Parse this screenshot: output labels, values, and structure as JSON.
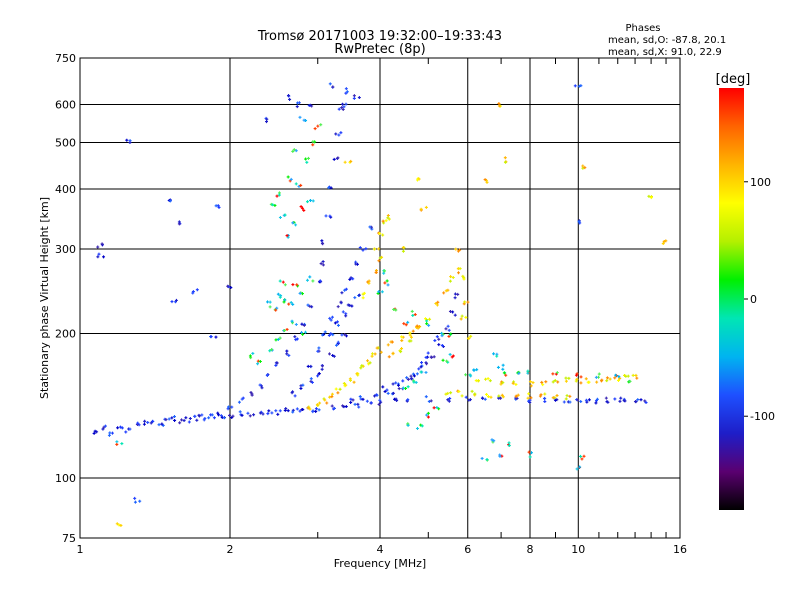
{
  "chart_data": {
    "type": "scatter",
    "title": "Tromsø 20171003 19:32:00–19:33:43",
    "subtitle": "RwPretec (8p)",
    "xlabel": "Frequency [MHz]",
    "ylabel": "Stationary phase Virtual Height [km]",
    "x_scale": "log",
    "y_scale": "log",
    "xlim": [
      1,
      16
    ],
    "ylim": [
      75,
      750
    ],
    "x_ticks": [
      1,
      2,
      4,
      6,
      8,
      10,
      16
    ],
    "x_minor_ticks": [
      3,
      5,
      7,
      9,
      11,
      12,
      13,
      14,
      15
    ],
    "y_ticks": [
      75,
      100,
      200,
      300,
      400,
      500,
      600,
      750
    ],
    "grid": true,
    "phases_box": {
      "title": "Phases",
      "line1": "mean, sd,O: -87.8, 20.1",
      "line2": "mean, sd,X:  91.0, 22.9"
    },
    "colorbar": {
      "label": "[deg]",
      "range": [
        -180,
        180
      ],
      "ticks": [
        100,
        0,
        -100
      ],
      "colormap": [
        "#000000",
        "#5a0070",
        "#1e1ec8",
        "#1e50ff",
        "#00b4f0",
        "#00e6b4",
        "#00f000",
        "#b4f000",
        "#ffff00",
        "#ffb400",
        "#ff6400",
        "#ff0000"
      ]
    },
    "series": [
      {
        "color_group": "O-mode (blue, ~-90 deg)",
        "points": [
          [
            1.08,
            125
          ],
          [
            1.12,
            127
          ],
          [
            1.16,
            124
          ],
          [
            1.2,
            127
          ],
          [
            1.25,
            126
          ],
          [
            1.3,
            129
          ],
          [
            1.35,
            130
          ],
          [
            1.4,
            131
          ],
          [
            1.45,
            130
          ],
          [
            1.5,
            132
          ],
          [
            1.55,
            133
          ],
          [
            1.6,
            131
          ],
          [
            1.65,
            132
          ],
          [
            1.7,
            133
          ],
          [
            1.75,
            134
          ],
          [
            1.8,
            133
          ],
          [
            1.85,
            134
          ],
          [
            1.9,
            135
          ],
          [
            1.95,
            135
          ],
          [
            2.0,
            135
          ],
          [
            2.1,
            136
          ],
          [
            2.2,
            136
          ],
          [
            2.3,
            136
          ],
          [
            2.4,
            137
          ],
          [
            2.5,
            137
          ],
          [
            2.6,
            138
          ],
          [
            2.7,
            138
          ],
          [
            2.8,
            138
          ],
          [
            2.9,
            139
          ],
          [
            3.0,
            139
          ],
          [
            3.2,
            140
          ],
          [
            3.4,
            141
          ],
          [
            3.6,
            142
          ],
          [
            3.8,
            143
          ],
          [
            4.0,
            144
          ],
          [
            4.3,
            145
          ],
          [
            4.6,
            145
          ],
          [
            5.0,
            146
          ],
          [
            5.5,
            146
          ],
          [
            6.0,
            146
          ],
          [
            6.5,
            146
          ],
          [
            7.0,
            146
          ],
          [
            7.5,
            146
          ],
          [
            8.0,
            145
          ],
          [
            8.5,
            145
          ],
          [
            9.0,
            145
          ],
          [
            9.5,
            145
          ],
          [
            10.0,
            145
          ],
          [
            10.5,
            145
          ],
          [
            11.0,
            145
          ],
          [
            11.5,
            145
          ],
          [
            12.0,
            145
          ],
          [
            12.5,
            145
          ],
          [
            13.0,
            145
          ],
          [
            13.5,
            145
          ],
          [
            2.0,
            140
          ],
          [
            2.1,
            145
          ],
          [
            2.2,
            150
          ],
          [
            2.3,
            156
          ],
          [
            2.4,
            163
          ],
          [
            2.5,
            172
          ],
          [
            2.6,
            182
          ],
          [
            2.7,
            195
          ],
          [
            2.8,
            210
          ],
          [
            2.9,
            230
          ],
          [
            3.0,
            255
          ],
          [
            3.05,
            280
          ],
          [
            3.1,
            310
          ],
          [
            3.15,
            350
          ],
          [
            3.2,
            400
          ],
          [
            3.25,
            460
          ],
          [
            3.3,
            520
          ],
          [
            3.35,
            590
          ],
          [
            3.4,
            640
          ],
          [
            2.9,
            170
          ],
          [
            3.0,
            185
          ],
          [
            3.1,
            200
          ],
          [
            3.2,
            215
          ],
          [
            3.3,
            230
          ],
          [
            3.4,
            245
          ],
          [
            3.5,
            260
          ],
          [
            3.6,
            280
          ],
          [
            3.7,
            300
          ],
          [
            3.8,
            330
          ],
          [
            3.2,
            200
          ],
          [
            3.3,
            210
          ],
          [
            3.4,
            220
          ],
          [
            3.5,
            230
          ],
          [
            3.6,
            240
          ],
          [
            3.5,
            145
          ],
          [
            3.7,
            147
          ],
          [
            3.9,
            150
          ],
          [
            4.1,
            153
          ],
          [
            4.3,
            156
          ],
          [
            4.5,
            160
          ],
          [
            4.7,
            165
          ],
          [
            4.9,
            172
          ],
          [
            5.1,
            180
          ],
          [
            5.3,
            190
          ],
          [
            5.5,
            205
          ],
          [
            5.6,
            220
          ],
          [
            5.7,
            240
          ],
          [
            4.2,
            150
          ],
          [
            4.4,
            155
          ],
          [
            4.6,
            162
          ],
          [
            4.8,
            170
          ],
          [
            5.0,
            180
          ],
          [
            5.2,
            195
          ],
          [
            2.7,
            150
          ],
          [
            2.8,
            155
          ],
          [
            2.9,
            160
          ],
          [
            3.0,
            165
          ],
          [
            3.1,
            170
          ],
          [
            3.2,
            180
          ],
          [
            3.3,
            190
          ],
          [
            3.4,
            200
          ],
          [
            1.25,
            505
          ],
          [
            1.1,
            305
          ],
          [
            1.1,
            290
          ],
          [
            1.5,
            380
          ],
          [
            1.6,
            340
          ],
          [
            1.55,
            235
          ],
          [
            1.7,
            245
          ],
          [
            1.9,
            365
          ],
          [
            2.0,
            250
          ],
          [
            1.85,
            195
          ],
          [
            1.3,
            90
          ],
          [
            2.35,
            555
          ],
          [
            2.6,
            620
          ],
          [
            2.75,
            600
          ],
          [
            2.9,
            595
          ],
          [
            3.2,
            655
          ],
          [
            3.4,
            600
          ],
          [
            3.6,
            625
          ],
          [
            10.0,
            655
          ],
          [
            10.1,
            340
          ]
        ]
      },
      {
        "color_group": "X-mode (yellow/orange, ~+90 deg)",
        "points": [
          [
            2.9,
            140
          ],
          [
            3.0,
            142
          ],
          [
            3.1,
            145
          ],
          [
            3.2,
            148
          ],
          [
            3.3,
            152
          ],
          [
            3.4,
            156
          ],
          [
            3.5,
            160
          ],
          [
            3.6,
            165
          ],
          [
            3.7,
            170
          ],
          [
            3.8,
            175
          ],
          [
            3.9,
            180
          ],
          [
            4.0,
            185
          ],
          [
            4.2,
            190
          ],
          [
            4.4,
            195
          ],
          [
            4.6,
            200
          ],
          [
            4.8,
            205
          ],
          [
            5.5,
            150
          ],
          [
            5.8,
            150
          ],
          [
            6.2,
            150
          ],
          [
            6.6,
            149
          ],
          [
            7.0,
            149
          ],
          [
            7.5,
            149
          ],
          [
            8.0,
            148
          ],
          [
            8.5,
            148
          ],
          [
            9.0,
            148
          ],
          [
            9.5,
            147
          ],
          [
            6.3,
            160
          ],
          [
            6.6,
            160
          ],
          [
            7.0,
            158
          ],
          [
            7.5,
            157
          ],
          [
            8.0,
            157
          ],
          [
            8.5,
            158
          ],
          [
            9.0,
            160
          ],
          [
            9.5,
            160
          ],
          [
            10.0,
            159
          ],
          [
            10.5,
            160
          ],
          [
            11.0,
            160
          ],
          [
            11.5,
            160
          ],
          [
            12.0,
            161
          ],
          [
            12.5,
            162
          ],
          [
            13.0,
            162
          ],
          [
            4.2,
            180
          ],
          [
            4.4,
            185
          ],
          [
            4.6,
            195
          ],
          [
            4.8,
            205
          ],
          [
            5.0,
            215
          ],
          [
            5.2,
            230
          ],
          [
            5.4,
            245
          ],
          [
            5.6,
            260
          ],
          [
            5.8,
            270
          ],
          [
            3.7,
            240
          ],
          [
            3.8,
            255
          ],
          [
            3.9,
            270
          ],
          [
            4.0,
            285
          ],
          [
            3.95,
            300
          ],
          [
            4.0,
            320
          ],
          [
            4.1,
            340
          ],
          [
            4.2,
            350
          ],
          [
            4.8,
            420
          ],
          [
            4.9,
            365
          ],
          [
            4.5,
            300
          ],
          [
            6.0,
            195
          ],
          [
            5.9,
            215
          ],
          [
            5.95,
            230
          ],
          [
            5.7,
            300
          ],
          [
            5.85,
            260
          ],
          [
            6.5,
            415
          ],
          [
            7.2,
            460
          ],
          [
            7.0,
            600
          ],
          [
            10.2,
            445
          ],
          [
            14.8,
            310
          ],
          [
            13.9,
            385
          ],
          [
            1.2,
            80
          ],
          [
            3.45,
            460
          ]
        ]
      },
      {
        "color_group": "mixed (cyan/green/red)",
        "points": [
          [
            2.5,
            240
          ],
          [
            2.6,
            235
          ],
          [
            2.7,
            250
          ],
          [
            2.8,
            245
          ],
          [
            2.9,
            260
          ],
          [
            2.55,
            255
          ],
          [
            2.65,
            230
          ],
          [
            2.45,
            225
          ],
          [
            2.4,
            230
          ],
          [
            2.6,
            320
          ],
          [
            2.7,
            340
          ],
          [
            2.8,
            365
          ],
          [
            2.9,
            380
          ],
          [
            2.75,
            410
          ],
          [
            2.85,
            460
          ],
          [
            2.95,
            500
          ],
          [
            3.0,
            540
          ],
          [
            2.8,
            560
          ],
          [
            2.7,
            480
          ],
          [
            2.65,
            420
          ],
          [
            2.5,
            390
          ],
          [
            2.45,
            370
          ],
          [
            2.55,
            350
          ],
          [
            2.2,
            180
          ],
          [
            2.3,
            175
          ],
          [
            2.4,
            185
          ],
          [
            2.5,
            195
          ],
          [
            2.6,
            205
          ],
          [
            2.7,
            210
          ],
          [
            2.8,
            200
          ],
          [
            6.0,
            165
          ],
          [
            6.2,
            168
          ],
          [
            5.4,
            175
          ],
          [
            5.6,
            180
          ],
          [
            4.5,
            155
          ],
          [
            4.7,
            160
          ],
          [
            4.9,
            165
          ],
          [
            4.0,
            245
          ],
          [
            4.05,
            270
          ],
          [
            4.1,
            255
          ],
          [
            4.3,
            225
          ],
          [
            4.5,
            210
          ],
          [
            4.7,
            220
          ],
          [
            5.0,
            210
          ],
          [
            5.3,
            200
          ],
          [
            5.5,
            198
          ],
          [
            4.6,
            130
          ],
          [
            4.8,
            128
          ],
          [
            5.0,
            135
          ],
          [
            5.2,
            140
          ],
          [
            6.8,
            180
          ],
          [
            7.0,
            170
          ],
          [
            7.2,
            165
          ],
          [
            7.5,
            165
          ],
          [
            8.0,
            165
          ],
          [
            9.0,
            165
          ],
          [
            10.0,
            164
          ],
          [
            11.0,
            163
          ],
          [
            12.0,
            162
          ],
          [
            12.8,
            160
          ],
          [
            6.8,
            120
          ],
          [
            7.2,
            118
          ],
          [
            6.5,
            110
          ],
          [
            7.0,
            112
          ],
          [
            8.0,
            112
          ],
          [
            10.0,
            105
          ],
          [
            10.2,
            110
          ],
          [
            1.2,
            118
          ]
        ]
      }
    ]
  }
}
